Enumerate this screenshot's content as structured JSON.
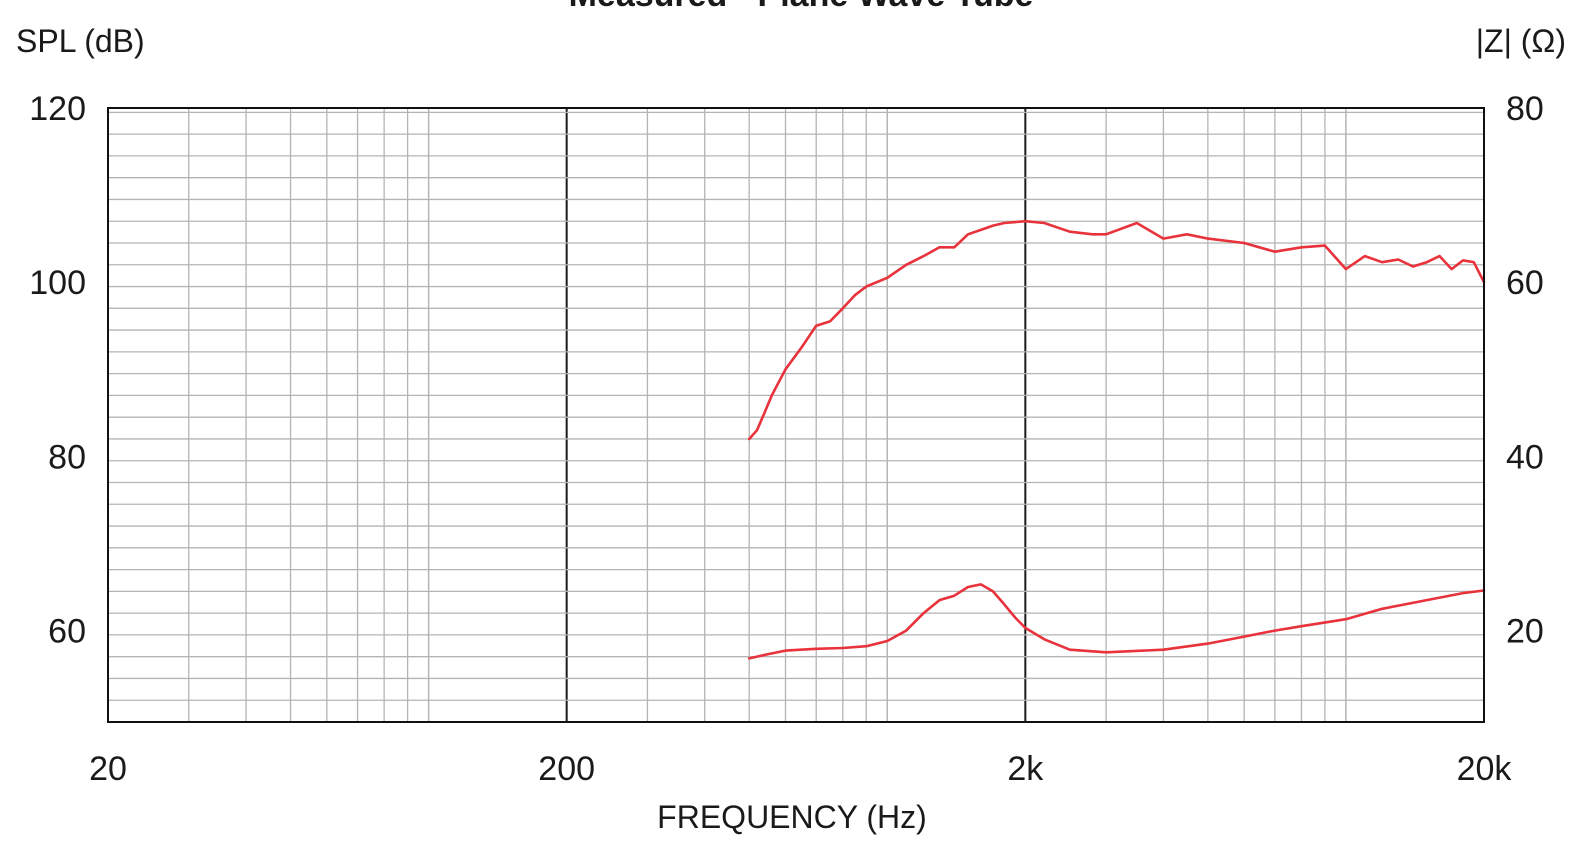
{
  "chart_data": {
    "type": "line",
    "title": "Measured - Plane Wave Tube",
    "xlabel": "FREQUENCY (Hz)",
    "ylabel_left": "SPL (dB)",
    "ylabel_right": "|Z| (Ω)",
    "x_scale": "log",
    "xlim": [
      20,
      20000
    ],
    "ylim_left": [
      49.5,
      120
    ],
    "ylim_right": [
      9.5,
      80
    ],
    "x_tick_values": [
      20,
      200,
      2000,
      20000
    ],
    "x_tick_labels": [
      "20",
      "200",
      "2k",
      "20k"
    ],
    "y_left_tick_values": [
      60,
      80,
      100,
      120
    ],
    "y_left_tick_labels": [
      "60",
      "80",
      "100",
      "120"
    ],
    "y_right_tick_values": [
      20,
      40,
      60,
      80
    ],
    "y_right_tick_labels": [
      "20",
      "40",
      "60",
      "80"
    ],
    "grid": true,
    "line_color": "#e8323c",
    "series": [
      {
        "axis": "left",
        "x": [
          500,
          520,
          540,
          560,
          600,
          650,
          700,
          750,
          800,
          850,
          900,
          1000,
          1100,
          1200,
          1300,
          1400,
          1500,
          1600,
          1700,
          1800,
          2000,
          2200,
          2500,
          2800,
          3000,
          3500,
          4000,
          4500,
          5000,
          6000,
          7000,
          8000,
          9000,
          10000,
          11000,
          12000,
          13000,
          14000,
          15000,
          16000,
          17000,
          18000,
          19000,
          20000
        ],
        "y": [
          82,
          83,
          85,
          87,
          90,
          92.5,
          95,
          95.5,
          97,
          98.5,
          99.5,
          100.5,
          102,
          103,
          104,
          104,
          105.5,
          106,
          106.5,
          106.8,
          107,
          106.8,
          105.8,
          105.5,
          105.5,
          106.8,
          105,
          105.5,
          105,
          104.5,
          103.5,
          104,
          104.2,
          101.5,
          103,
          102.3,
          102.6,
          101.8,
          102.3,
          103,
          101.5,
          102.5,
          102.3,
          100
        ]
      },
      {
        "axis": "right",
        "x": [
          500,
          550,
          600,
          700,
          800,
          900,
          1000,
          1100,
          1200,
          1300,
          1400,
          1500,
          1600,
          1700,
          1800,
          1900,
          2000,
          2200,
          2500,
          3000,
          4000,
          5000,
          6000,
          7000,
          8000,
          10000,
          12000,
          15000,
          18000,
          20000
        ],
        "y": [
          16.8,
          17.3,
          17.7,
          17.9,
          18,
          18.2,
          18.8,
          20,
          22,
          23.5,
          24,
          25,
          25.3,
          24.5,
          23,
          21.5,
          20.3,
          19,
          17.8,
          17.5,
          17.8,
          18.5,
          19.3,
          20,
          20.5,
          21.3,
          22.5,
          23.5,
          24.3,
          24.6
        ]
      }
    ]
  }
}
